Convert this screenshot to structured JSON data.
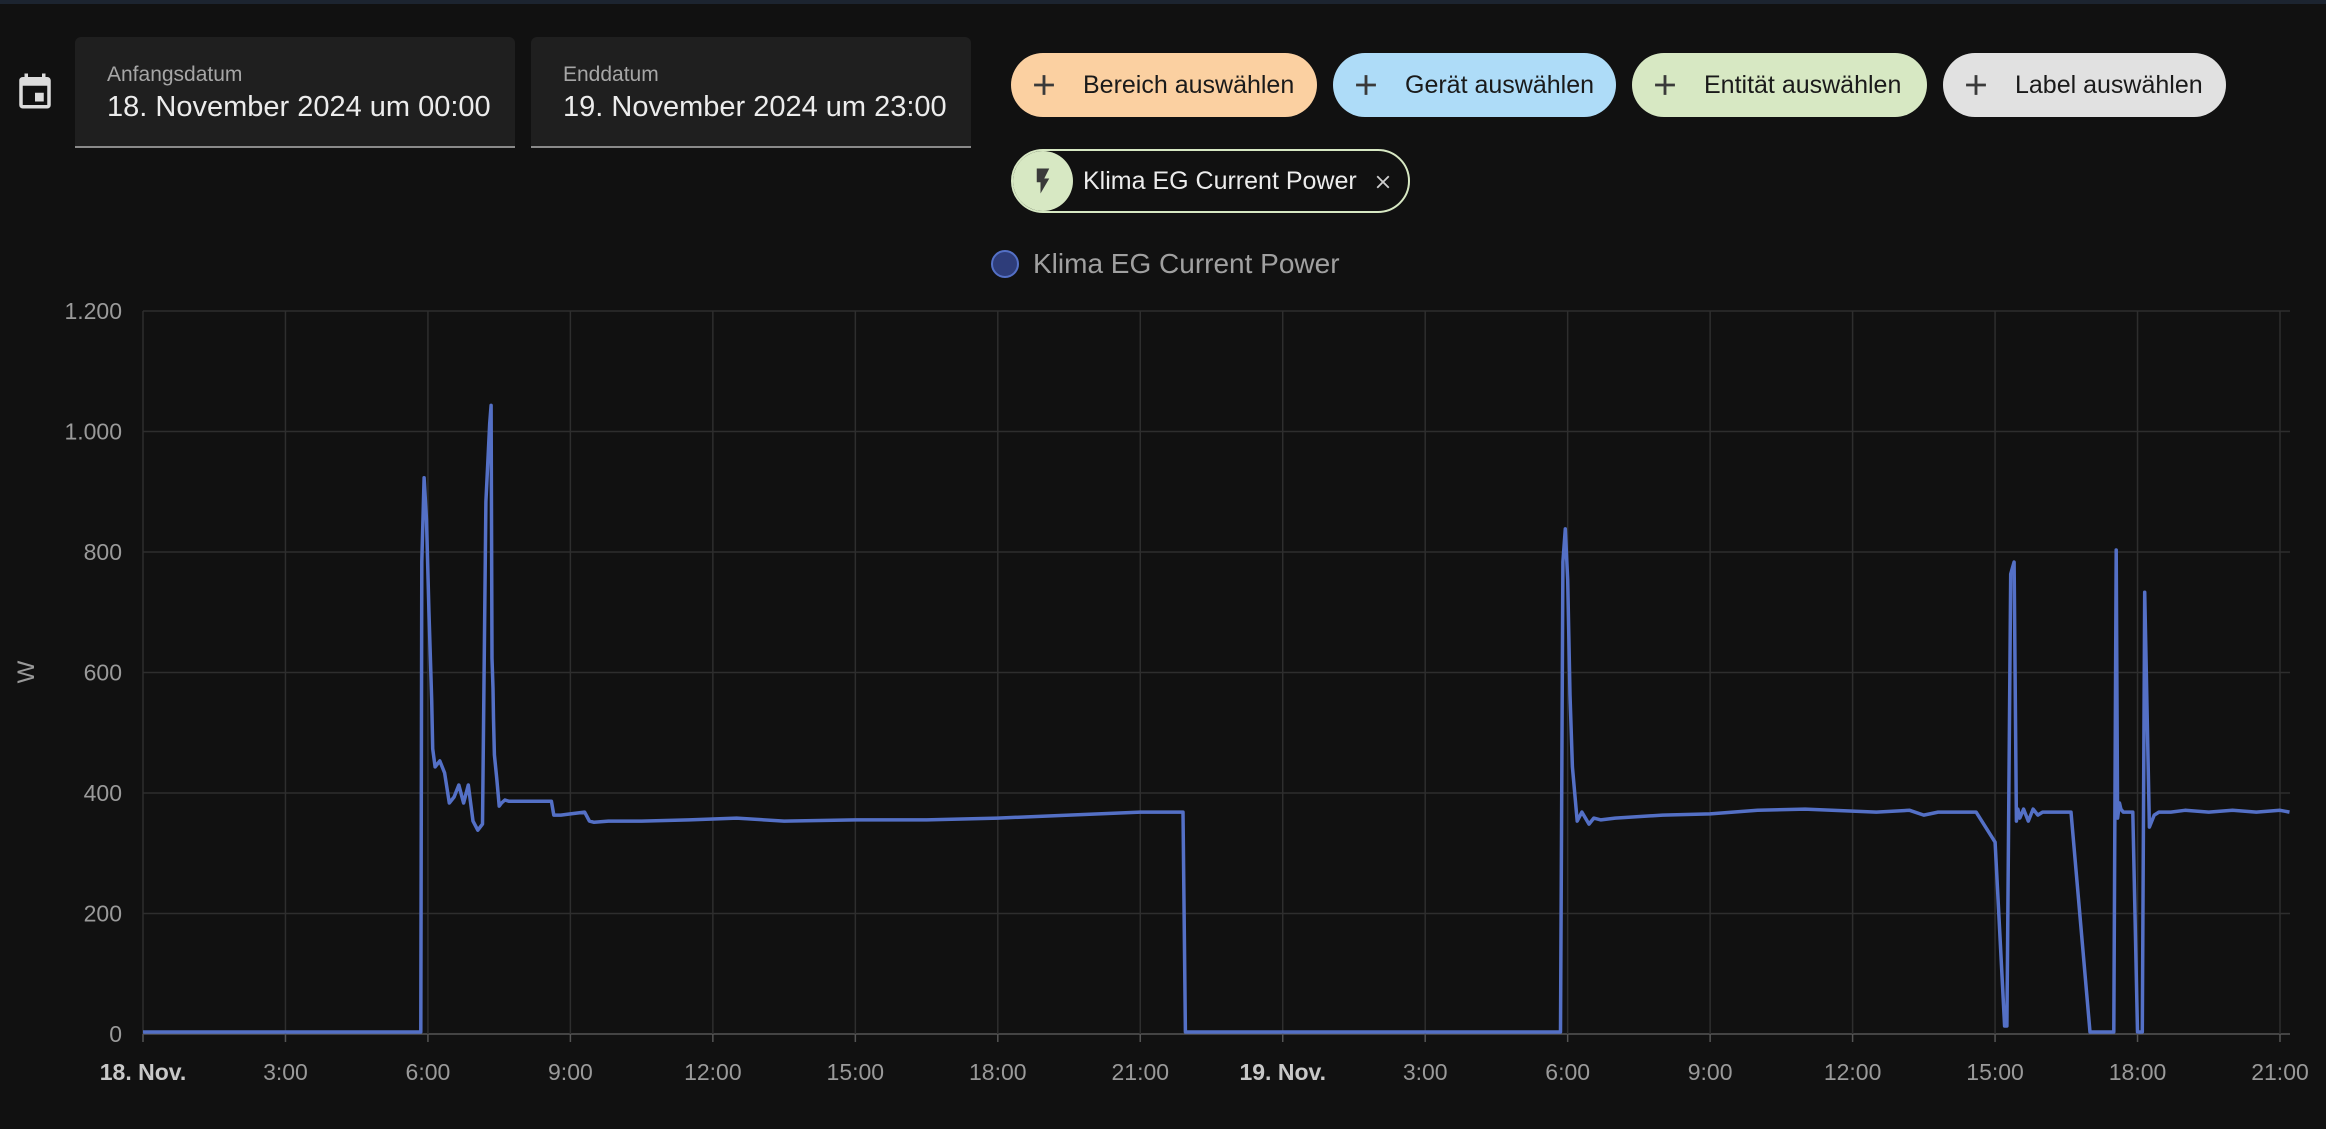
{
  "date_range": {
    "start_label": "Anfangsdatum",
    "start_value": "18. November 2024 um 00:00",
    "end_label": "Enddatum",
    "end_value": "19. November 2024 um 23:00",
    "icon": "calendar-icon"
  },
  "target_chips": [
    {
      "label": "Bereich auswählen",
      "color": "#fbd0a1",
      "icon": "plus-icon"
    },
    {
      "label": "Gerät auswählen",
      "color": "#aedcf8",
      "icon": "plus-icon"
    },
    {
      "label": "Entität auswählen",
      "color": "#d7e8c3",
      "icon": "plus-icon"
    },
    {
      "label": "Label auswählen",
      "color": "#e1e1e1",
      "icon": "plus-icon"
    }
  ],
  "selected_entity": {
    "label": "Klima EG Current Power",
    "icon": "flash-icon",
    "remove_icon": "close-icon",
    "color": "#d7e8c3"
  },
  "chart_data": {
    "type": "line",
    "legend": [
      "Klima EG Current Power"
    ],
    "legend_position": "top-center",
    "ylabel": "W",
    "ylim": [
      0,
      1200
    ],
    "yticks": [
      0,
      200,
      400,
      600,
      800,
      1000,
      1200
    ],
    "ytick_labels": [
      "0",
      "200",
      "400",
      "600",
      "800",
      "1.000",
      "1.200"
    ],
    "xlim_hours": [
      0,
      45.2
    ],
    "xticks_hours": [
      0,
      3,
      6,
      9,
      12,
      15,
      18,
      21,
      24,
      27,
      30,
      33,
      36,
      39,
      42,
      45
    ],
    "xtick_labels": [
      "18. Nov.",
      "3:00",
      "6:00",
      "9:00",
      "12:00",
      "15:00",
      "18:00",
      "21:00",
      "19. Nov.",
      "3:00",
      "6:00",
      "9:00",
      "12:00",
      "15:00",
      "18:00",
      "21:00"
    ],
    "bold_xticks": [
      "18. Nov.",
      "19. Nov."
    ],
    "grid": true,
    "series": [
      {
        "name": "Klima EG Current Power",
        "color": "#5470c6",
        "x_hours": [
          0,
          5.85,
          5.87,
          5.92,
          5.97,
          6.02,
          6.08,
          6.1,
          6.15,
          6.25,
          6.35,
          6.45,
          6.55,
          6.65,
          6.75,
          6.85,
          6.95,
          7.05,
          7.15,
          7.22,
          7.3,
          7.33,
          7.35,
          7.37,
          7.38,
          7.4,
          7.45,
          7.5,
          7.55,
          7.62,
          7.7,
          7.8,
          8.0,
          8.3,
          8.6,
          8.65,
          8.8,
          9.0,
          9.3,
          9.4,
          9.5,
          9.8,
          10.5,
          11.5,
          12.5,
          13.5,
          15,
          16.5,
          18,
          19.5,
          21,
          21.85,
          21.9,
          21.95,
          22.0,
          29.8,
          29.85,
          29.9,
          29.95,
          30.0,
          30.05,
          30.1,
          30.2,
          30.3,
          30.45,
          30.55,
          30.7,
          31,
          32,
          33,
          34,
          35,
          36.5,
          37.2,
          37.5,
          37.8,
          38.0,
          38.6,
          39.0,
          39.2,
          39.25,
          39.33,
          39.4,
          39.45,
          39.48,
          39.52,
          39.6,
          39.7,
          39.8,
          39.9,
          40.0,
          40.2,
          40.4,
          40.6,
          41.0,
          41.5,
          41.55,
          41.58,
          41.62,
          41.65,
          41.7,
          41.9,
          42.0,
          42.05,
          42.1,
          42.15,
          42.25,
          42.35,
          42.45,
          42.55,
          42.7,
          43.0,
          43.5,
          44.0,
          44.5,
          45.0,
          45.2
        ],
        "values": [
          0,
          0,
          780,
          920,
          850,
          700,
          550,
          470,
          440,
          450,
          430,
          380,
          390,
          410,
          380,
          410,
          350,
          335,
          345,
          880,
          1010,
          1040,
          620,
          570,
          520,
          460,
          420,
          375,
          380,
          385,
          383,
          383,
          383,
          383,
          383,
          360,
          360,
          362,
          365,
          350,
          348,
          350,
          350,
          352,
          355,
          350,
          352,
          352,
          355,
          360,
          365,
          365,
          365,
          0,
          0,
          0,
          0,
          780,
          835,
          750,
          560,
          440,
          350,
          365,
          345,
          355,
          352,
          355,
          360,
          362,
          368,
          370,
          365,
          368,
          360,
          365,
          365,
          365,
          315,
          10,
          10,
          760,
          780,
          350,
          370,
          355,
          370,
          350,
          370,
          360,
          365,
          365,
          365,
          365,
          0,
          0,
          800,
          355,
          380,
          370,
          365,
          365,
          0,
          0,
          0,
          730,
          340,
          360,
          365,
          365,
          365,
          368,
          365,
          368,
          365,
          368,
          365
        ]
      }
    ]
  }
}
